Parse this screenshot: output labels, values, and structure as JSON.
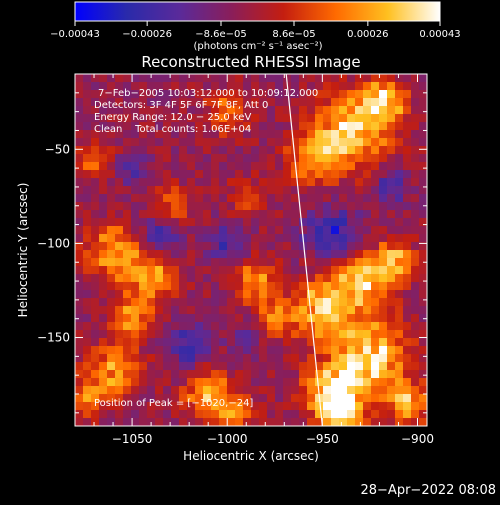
{
  "chart_data": {
    "type": "heatmap",
    "title": "Reconstructed RHESSI Image",
    "xlabel": "Heliocentric X (arcsec)",
    "ylabel": "Heliocentric Y (arcsec)",
    "x_range": [
      -1080,
      -895
    ],
    "y_range": [
      -197,
      -10
    ],
    "x_ticks": [
      -1050,
      -1000,
      -950,
      -900
    ],
    "x_tick_labels": [
      "−1050",
      "−1000",
      "−950",
      "−900"
    ],
    "y_ticks": [
      -50,
      -100,
      -150
    ],
    "y_tick_labels": [
      "−50",
      "−100",
      "−150"
    ],
    "colorbar": {
      "range": [
        -0.00043,
        0.00043
      ],
      "ticks": [
        -0.00043,
        -0.00026,
        -8.6e-05,
        8.6e-05,
        0.00026,
        0.00043
      ],
      "tick_labels": [
        "−0.00043",
        "−0.00026",
        "−8.6e−05",
        "8.6e−05",
        "0.00026",
        "0.00043"
      ],
      "unit_label": "(photons cm⁻² s⁻¹ asec⁻²)",
      "colors": [
        "#0000ff",
        "#2a2aaa",
        "#5a2a9a",
        "#8a1e5a",
        "#c41e10",
        "#ff6a00",
        "#ffc020",
        "#ffffff"
      ]
    },
    "info_lines": [
      "7−Feb−2005 10:03:12.000 to 10:09:12.000",
      "Detectors: 3F 4F 5F 6F 7F 8F, Att 0",
      "Energy Range: 12.0 − 25.0 keV",
      "Clean    Total counts: 1.06E+04"
    ],
    "peak_label": "Position of Peak = [−1020,−24]",
    "peak": {
      "x": -1020,
      "y": -24
    },
    "limb_line": {
      "x1": -969,
      "y1": -10,
      "x2": -950,
      "y2": -197
    },
    "hot_regions": [
      {
        "x": -935,
        "y": -40,
        "r": 14,
        "v": 0.0004
      },
      {
        "x": -918,
        "y": -25,
        "r": 8,
        "v": 0.00034
      },
      {
        "x": -955,
        "y": -55,
        "r": 9,
        "v": 0.00028
      },
      {
        "x": -930,
        "y": -120,
        "r": 10,
        "v": 0.00034
      },
      {
        "x": -912,
        "y": -110,
        "r": 8,
        "v": 0.0003
      },
      {
        "x": -950,
        "y": -135,
        "r": 11,
        "v": 0.00036
      },
      {
        "x": -925,
        "y": -160,
        "r": 14,
        "v": 0.0004
      },
      {
        "x": -945,
        "y": -178,
        "r": 10,
        "v": 0.00038
      },
      {
        "x": -905,
        "y": -185,
        "r": 8,
        "v": 0.00028
      },
      {
        "x": -940,
        "y": -190,
        "r": 8,
        "v": 0.00036
      },
      {
        "x": -1060,
        "y": -105,
        "r": 10,
        "v": 0.00032
      },
      {
        "x": -1040,
        "y": -118,
        "r": 9,
        "v": 0.0003
      },
      {
        "x": -1050,
        "y": -140,
        "r": 8,
        "v": 0.00026
      },
      {
        "x": -1060,
        "y": -168,
        "r": 10,
        "v": 0.0003
      },
      {
        "x": -1075,
        "y": -183,
        "r": 7,
        "v": 0.00024
      },
      {
        "x": -1010,
        "y": -180,
        "r": 9,
        "v": 0.0003
      },
      {
        "x": -995,
        "y": -190,
        "r": 7,
        "v": 0.00024
      },
      {
        "x": -985,
        "y": -120,
        "r": 8,
        "v": 0.00026
      },
      {
        "x": -975,
        "y": -140,
        "r": 7,
        "v": 0.00024
      },
      {
        "x": -1000,
        "y": -30,
        "r": 8,
        "v": 0.00022
      },
      {
        "x": -1030,
        "y": -80,
        "r": 7,
        "v": 0.0002
      },
      {
        "x": -1070,
        "y": -55,
        "r": 7,
        "v": 0.00018
      },
      {
        "x": -990,
        "y": -75,
        "r": 7,
        "v": 0.00016
      }
    ],
    "cold_regions": [
      {
        "x": -945,
        "y": -95,
        "r": 10,
        "v": -0.00026
      },
      {
        "x": -1020,
        "y": -155,
        "r": 8,
        "v": -0.00024
      },
      {
        "x": -1035,
        "y": -95,
        "r": 7,
        "v": -0.0002
      },
      {
        "x": -1000,
        "y": -100,
        "r": 7,
        "v": -0.0002
      },
      {
        "x": -1050,
        "y": -60,
        "r": 6,
        "v": -0.00016
      },
      {
        "x": -915,
        "y": -70,
        "r": 7,
        "v": -0.00018
      },
      {
        "x": -990,
        "y": -150,
        "r": 6,
        "v": -0.00016
      }
    ]
  },
  "timestamp": "28−Apr−2022 08:08"
}
